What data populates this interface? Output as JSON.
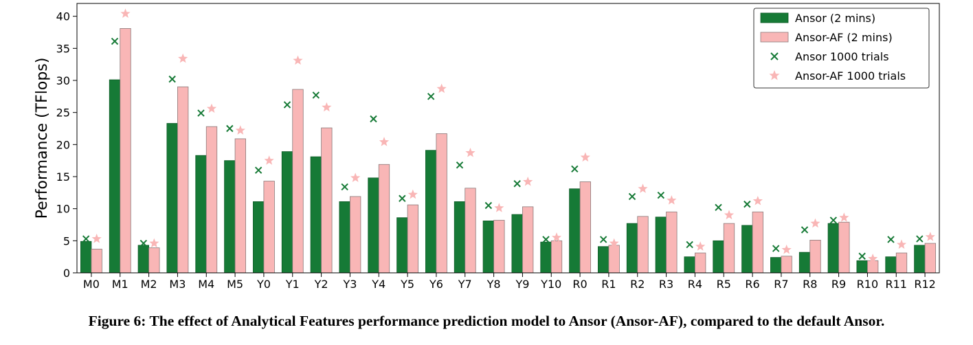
{
  "chart_data": {
    "type": "bar",
    "ylabel": "Performance (TFlops)",
    "ylim": [
      0,
      42
    ],
    "yticks": [
      0,
      5,
      10,
      15,
      20,
      25,
      30,
      35,
      40
    ],
    "categories": [
      "M0",
      "M1",
      "M2",
      "M3",
      "M4",
      "M5",
      "Y0",
      "Y1",
      "Y2",
      "Y3",
      "Y4",
      "Y5",
      "Y6",
      "Y7",
      "Y8",
      "Y9",
      "Y10",
      "R0",
      "R1",
      "R2",
      "R3",
      "R4",
      "R5",
      "R6",
      "R7",
      "R8",
      "R9",
      "R10",
      "R11",
      "R12"
    ],
    "series": [
      {
        "name": "Ansor (2 mins)",
        "kind": "bar",
        "color": "#167a36",
        "values": [
          4.9,
          30.1,
          4.3,
          23.3,
          18.3,
          17.5,
          11.1,
          18.9,
          18.1,
          11.1,
          14.8,
          8.6,
          19.1,
          11.1,
          8.1,
          9.1,
          4.8,
          13.1,
          4.1,
          7.7,
          8.7,
          2.5,
          5.0,
          7.4,
          2.4,
          3.2,
          7.7,
          1.9,
          2.5,
          4.3
        ]
      },
      {
        "name": "Ansor-AF (2 mins)",
        "kind": "bar",
        "color": "#f9b6b6",
        "values": [
          3.7,
          38.1,
          3.9,
          29.0,
          22.8,
          20.9,
          14.3,
          28.6,
          22.6,
          11.9,
          16.9,
          10.6,
          21.7,
          13.2,
          8.2,
          10.3,
          5.0,
          14.2,
          4.3,
          8.8,
          9.5,
          3.1,
          7.7,
          9.5,
          2.6,
          5.1,
          7.9,
          1.9,
          3.1,
          4.6
        ]
      },
      {
        "name": "Ansor 1000 trials",
        "kind": "marker-x",
        "color": "#167a36",
        "values": [
          5.3,
          36.1,
          4.6,
          30.2,
          24.9,
          22.5,
          16.0,
          26.2,
          27.7,
          13.4,
          24.0,
          11.6,
          27.5,
          16.8,
          10.5,
          13.9,
          5.2,
          16.2,
          5.2,
          11.9,
          12.1,
          4.4,
          10.2,
          10.7,
          3.8,
          6.7,
          8.2,
          2.6,
          5.2,
          5.3
        ]
      },
      {
        "name": "Ansor-AF 1000 trials",
        "kind": "marker-star",
        "color": "#f9b6b6",
        "values": [
          5.3,
          40.4,
          4.6,
          33.4,
          25.6,
          22.2,
          17.5,
          33.1,
          25.8,
          14.8,
          20.4,
          12.2,
          28.7,
          18.7,
          10.1,
          14.2,
          5.5,
          18.0,
          4.6,
          13.1,
          11.3,
          4.1,
          9.0,
          11.2,
          3.6,
          7.7,
          8.6,
          2.2,
          4.4,
          5.6
        ]
      }
    ],
    "legend": {
      "placement": "top-right"
    },
    "grid": false
  },
  "caption": "Figure 6: The effect of Analytical Features performance prediction model to Ansor (Ansor-AF), compared to the default Ansor."
}
